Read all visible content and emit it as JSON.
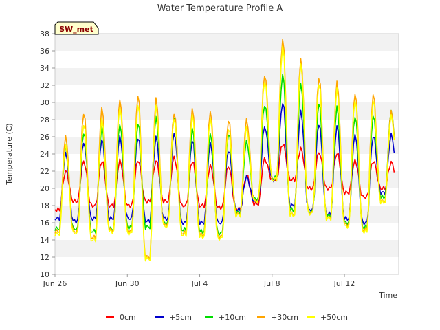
{
  "chart_data": {
    "type": "line",
    "title": "Water Temperature Profile A",
    "xlabel": "Time",
    "ylabel": "Temperature (C)",
    "ylim": [
      10,
      38
    ],
    "yticks": [
      10,
      12,
      14,
      16,
      18,
      20,
      22,
      24,
      26,
      28,
      30,
      32,
      34,
      36,
      38
    ],
    "xlim": [
      "2023-06-26",
      "2023-07-15"
    ],
    "xticks": [
      {
        "date": "2023-06-26",
        "label": "Jun 26"
      },
      {
        "date": "2023-06-30",
        "label": "Jun 30"
      },
      {
        "date": "2023-07-04",
        "label": "Jul 4"
      },
      {
        "date": "2023-07-08",
        "label": "Jul 8"
      },
      {
        "date": "2023-07-12",
        "label": "Jul 12"
      }
    ],
    "badge": "SW_met",
    "grid": "horizontal alternating bands",
    "legend_position": "bottom",
    "daily_points": [
      "2023-06-26",
      "2023-06-27",
      "2023-06-28",
      "2023-06-29",
      "2023-06-30",
      "2023-07-01",
      "2023-07-02",
      "2023-07-03",
      "2023-07-04",
      "2023-07-05",
      "2023-07-06",
      "2023-07-07",
      "2023-07-08",
      "2023-07-09",
      "2023-07-10",
      "2023-07-11",
      "2023-07-12",
      "2023-07-13",
      "2023-07-14"
    ],
    "series": [
      {
        "name": "0cm",
        "color": "#ff0000",
        "peaks": [
          22.0,
          23.1,
          23.2,
          23.2,
          23.3,
          23.2,
          23.6,
          23.2,
          22.6,
          22.6,
          21.5,
          23.4,
          25.2,
          24.6,
          24.2,
          24.1,
          23.2,
          23.2,
          23.0
        ],
        "troughs": [
          17.5,
          18.5,
          18.0,
          18.0,
          18.0,
          18.5,
          18.5,
          18.0,
          18.0,
          17.8,
          17.6,
          18.2,
          21.0,
          21.0,
          20.0,
          20.0,
          19.5,
          19.0,
          20.0
        ]
      },
      {
        "name": "+5cm",
        "color": "#0000cc",
        "peaks": [
          24.0,
          25.4,
          25.7,
          26.0,
          26.0,
          25.9,
          26.5,
          25.6,
          25.2,
          24.5,
          21.3,
          27.2,
          30.0,
          28.9,
          27.6,
          27.2,
          26.3,
          26.1,
          26.2
        ],
        "troughs": [
          16.5,
          16.2,
          16.5,
          16.5,
          16.5,
          16.2,
          16.5,
          16.0,
          16.0,
          16.0,
          17.5,
          18.5,
          21.0,
          18.0,
          17.5,
          17.0,
          16.5,
          16.0,
          19.5
        ]
      },
      {
        "name": "+10cm",
        "color": "#00dd00",
        "peaks": [
          24.9,
          26.6,
          27.1,
          27.5,
          27.6,
          28.2,
          28.4,
          26.9,
          26.4,
          26.4,
          25.4,
          29.8,
          33.2,
          32.2,
          30.0,
          29.4,
          28.5,
          28.4,
          29.0
        ],
        "troughs": [
          15.3,
          15.3,
          15.0,
          15.3,
          15.5,
          15.5,
          16.0,
          15.2,
          15.0,
          14.8,
          17.2,
          18.8,
          21.2,
          17.5,
          17.3,
          16.8,
          16.0,
          15.5,
          19.0
        ]
      },
      {
        "name": "+30cm",
        "color": "#ffa500",
        "peaks": [
          26.0,
          28.9,
          29.3,
          30.4,
          30.9,
          30.4,
          28.9,
          29.2,
          29.0,
          28.0,
          27.9,
          33.3,
          37.3,
          35.1,
          33.0,
          32.3,
          31.2,
          30.9,
          29.0
        ],
        "troughs": [
          15.0,
          15.0,
          14.3,
          15.2,
          15.0,
          12.0,
          15.8,
          14.8,
          14.6,
          14.4,
          17.0,
          18.6,
          21.0,
          17.0,
          17.2,
          16.6,
          15.8,
          15.2,
          18.5
        ]
      },
      {
        "name": "+50cm",
        "color": "#ffff00",
        "peaks": [
          25.0,
          27.6,
          28.0,
          29.5,
          29.8,
          29.5,
          28.3,
          28.5,
          28.2,
          27.0,
          27.0,
          32.6,
          36.5,
          34.5,
          32.3,
          31.5,
          30.4,
          30.2,
          28.5
        ],
        "troughs": [
          14.7,
          14.8,
          14.0,
          15.0,
          14.8,
          11.8,
          15.6,
          14.6,
          14.4,
          14.2,
          16.9,
          18.5,
          21.0,
          16.9,
          17.1,
          16.5,
          15.6,
          15.0,
          18.4
        ]
      }
    ]
  }
}
